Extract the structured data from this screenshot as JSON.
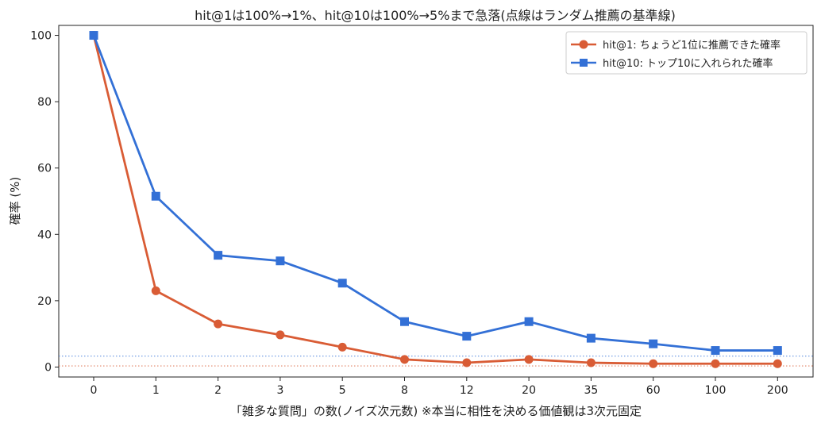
{
  "chart_data": {
    "type": "line",
    "title": "hit@1は100%→1%、hit@10は100%→5%まで急落(点線はランダム推薦の基準線)",
    "xlabel": "「雑多な質問」の数(ノイズ次元数)  ※本当に相性を決める価値観は3次元固定",
    "ylabel": "確率 (%)",
    "categories": [
      "0",
      "1",
      "2",
      "3",
      "5",
      "8",
      "12",
      "20",
      "35",
      "60",
      "100",
      "200"
    ],
    "yticks": [
      "0",
      "20",
      "40",
      "60",
      "80",
      "100"
    ],
    "ylim": [
      -3,
      103
    ],
    "grid": false,
    "legend_position": "top-right",
    "series": [
      {
        "name": "hit@1: ちょうど1位に推薦できた確率",
        "color": "#d95c35",
        "marker": "circle",
        "values": [
          100,
          23,
          13,
          9.7,
          6,
          2.3,
          1.3,
          2.3,
          1.3,
          1,
          1,
          1
        ]
      },
      {
        "name": "hit@10: トップ10に入れられた確率",
        "color": "#3370d6",
        "marker": "square",
        "values": [
          100,
          51.5,
          33.7,
          32,
          25.3,
          13.7,
          9.3,
          13.7,
          8.7,
          7,
          5,
          5
        ]
      }
    ],
    "baselines": [
      {
        "value": 3.3,
        "color": "#3370d6",
        "style": "dotted"
      },
      {
        "value": 0.33,
        "color": "#d95c35",
        "style": "dotted"
      }
    ]
  }
}
